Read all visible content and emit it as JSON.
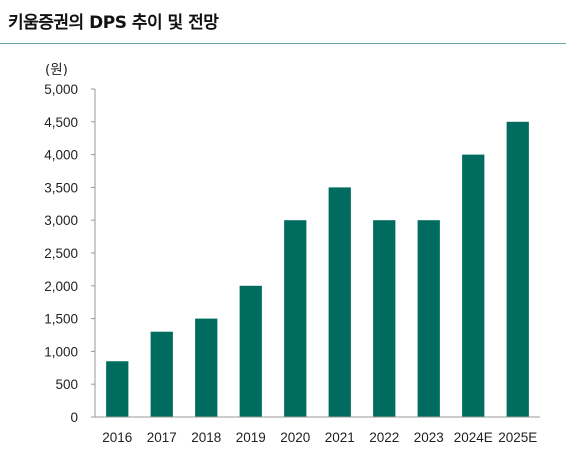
{
  "title": "키움증권의 DPS 추이 및 전망",
  "chart_data": {
    "type": "bar",
    "categories": [
      "2016",
      "2017",
      "2018",
      "2019",
      "2020",
      "2021",
      "2022",
      "2023",
      "2024E",
      "2025E"
    ],
    "values": [
      850,
      1300,
      1500,
      2000,
      3000,
      3500,
      3000,
      3000,
      4000,
      4500
    ],
    "unit_label": "(원)",
    "ylim": [
      0,
      5000
    ],
    "yticks": [
      "0",
      "500",
      "1,000",
      "1,500",
      "2,000",
      "2,500",
      "3,000",
      "3,500",
      "4,000",
      "4,500",
      "5,000"
    ],
    "bar_color": "#006b5f",
    "grid": false,
    "legend": "none"
  }
}
